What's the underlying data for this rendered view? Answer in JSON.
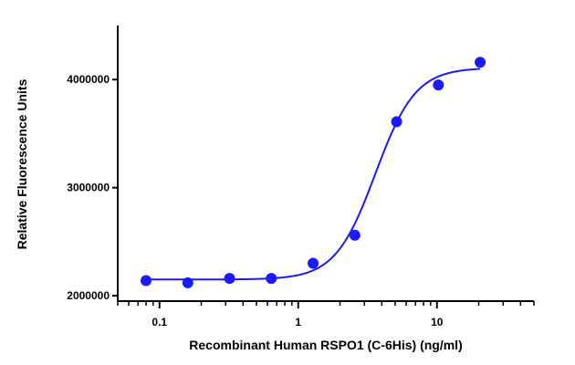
{
  "chart_data": {
    "type": "scatter",
    "title": "",
    "xlabel": "Recombinant Human RSPO1 (C-6His) (ng/ml)",
    "ylabel": "Relative Fluorescence Units",
    "x_scale": "log",
    "xlim": [
      0.05,
      50
    ],
    "ylim": [
      1950000,
      4500000
    ],
    "x_ticks": [
      0.1,
      1,
      10
    ],
    "x_tick_labels": [
      "0.1",
      "1",
      "10"
    ],
    "y_ticks": [
      2000000,
      3000000,
      4000000
    ],
    "y_tick_labels": [
      "2000000",
      "3000000",
      "4000000"
    ],
    "grid": false,
    "legend": "none",
    "series": [
      {
        "color": "#1a1aff",
        "marker": "circle",
        "x": [
          0.08,
          0.16,
          0.32,
          0.64,
          1.28,
          2.56,
          5.12,
          10.24,
          20.48
        ],
        "y": [
          2140000,
          2120000,
          2160000,
          2160000,
          2300000,
          2560000,
          3610000,
          3950000,
          4160000
        ],
        "fit": {
          "type": "4PL",
          "bottom": 2150000,
          "top": 4110000,
          "ec50": 3.6,
          "hill": 3.0,
          "x_range": [
            0.08,
            20.48
          ]
        }
      }
    ]
  }
}
